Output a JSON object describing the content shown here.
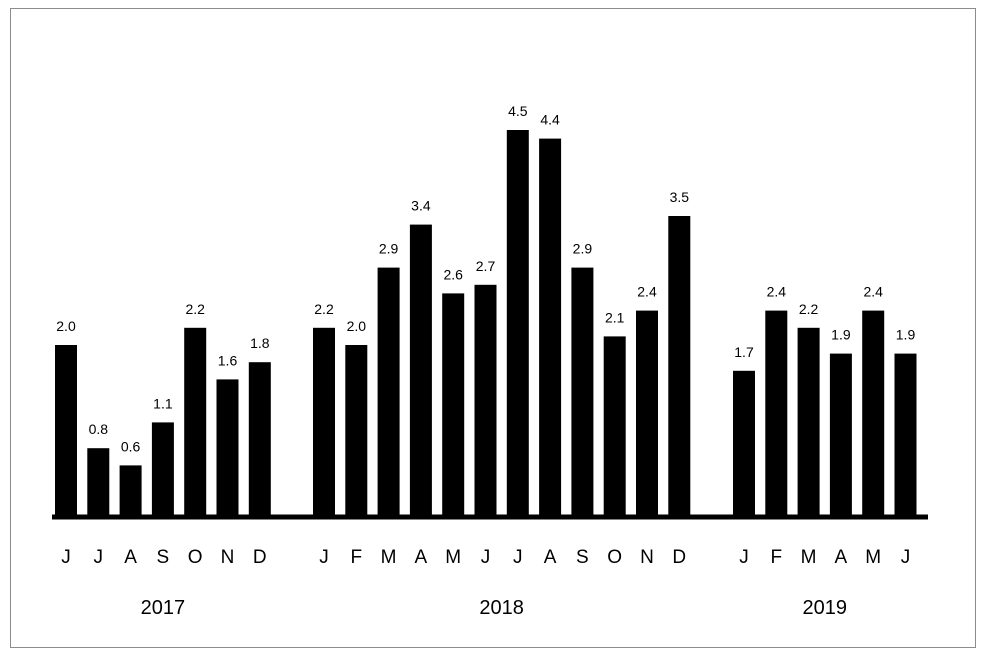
{
  "chart_data": {
    "type": "bar",
    "title": "",
    "xlabel": "",
    "ylabel": "",
    "ylim": [
      0,
      5
    ],
    "grid": false,
    "legend": false,
    "bar_color": "#000000",
    "groups": [
      {
        "year": "2017",
        "categories": [
          "J",
          "J",
          "A",
          "S",
          "O",
          "N",
          "D"
        ],
        "values": [
          2.0,
          0.8,
          0.6,
          1.1,
          2.2,
          1.6,
          1.8
        ],
        "value_labels": [
          "2.0",
          "0.8",
          "0.6",
          "1.1",
          "2.2",
          "1.6",
          "1.8"
        ]
      },
      {
        "year": "2018",
        "categories": [
          "J",
          "F",
          "M",
          "A",
          "M",
          "J",
          "J",
          "A",
          "S",
          "O",
          "N",
          "D"
        ],
        "values": [
          2.2,
          2.0,
          2.9,
          3.4,
          2.6,
          2.7,
          4.5,
          4.4,
          2.9,
          2.1,
          2.4,
          3.5
        ],
        "value_labels": [
          "2.2",
          "2.0",
          "2.9",
          "3.4",
          "2.6",
          "2.7",
          "4.5",
          "4.4",
          "2.9",
          "2.1",
          "2.4",
          "3.5"
        ]
      },
      {
        "year": "2019",
        "categories": [
          "J",
          "F",
          "M",
          "A",
          "M",
          "J"
        ],
        "values": [
          1.7,
          2.4,
          2.2,
          1.9,
          2.4,
          1.9
        ],
        "value_labels": [
          "1.7",
          "2.4",
          "2.2",
          "1.9",
          "2.4",
          "1.9"
        ]
      }
    ]
  }
}
